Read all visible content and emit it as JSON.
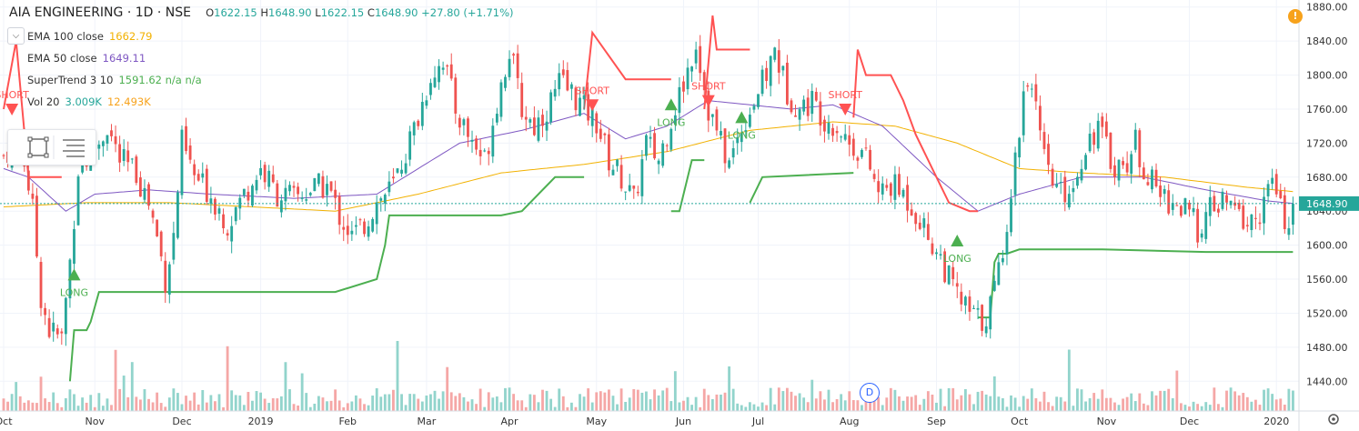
{
  "header": {
    "symbol": "AIA ENGINEERING · 1D · NSE",
    "open_label": "O",
    "open": "1622.15",
    "high_label": "H",
    "high": "1648.90",
    "low_label": "L",
    "low": "1622.15",
    "close_label": "C",
    "close": "1648.90",
    "change": "+27.80 (+1.71%)"
  },
  "indicators": [
    {
      "label": "EMA 100 close",
      "value": "1662.79",
      "color": "#f2b100"
    },
    {
      "label": "EMA 50 close",
      "value": "1649.11",
      "color": "#7e57c2"
    },
    {
      "label": "SuperTrend 3 10",
      "value": "1591.62 n/a n/a",
      "color": "#4caf50"
    },
    {
      "label": "Vol 20",
      "value": "3.009K",
      "value2": "12.493K",
      "color": "#26a69a",
      "color2": "#f7a21b"
    }
  ],
  "colors": {
    "up": "#26a69a",
    "down": "#ef5350",
    "vol_up": "#92d4cc",
    "vol_down": "#f5a7a6",
    "ema100": "#f2b100",
    "ema50": "#7e57c2",
    "st_up": "#4caf50",
    "st_down": "#ff5252",
    "grid": "#f0f3fa",
    "axis_text": "#333333",
    "last_price_bg": "#26a69a"
  },
  "icons": [
    "chevron-down-icon",
    "rectangle-select-icon",
    "menu-lines-icon",
    "alert-icon",
    "dividend-icon"
  ],
  "dividend_badge": "D",
  "alert_badge": "!",
  "chart_data": {
    "type": "candlestick",
    "y_axis_ticks": [
      1440,
      1480,
      1520,
      1560,
      1600,
      1640,
      1680,
      1720,
      1760,
      1800,
      1840,
      1880
    ],
    "ylim": [
      1405,
      1884
    ],
    "last_price": "1648.90",
    "x_axis_labels": [
      "Oct",
      "Nov",
      "Dec",
      "2019",
      "Feb",
      "Mar",
      "Apr",
      "May",
      "Jun",
      "Jul",
      "Aug",
      "Sep",
      "Oct",
      "Nov",
      "Dec",
      "2020"
    ],
    "x_label_index": [
      0,
      22,
      43,
      62,
      83,
      102,
      122,
      143,
      164,
      182,
      204,
      225,
      245,
      266,
      286,
      307
    ],
    "num_bars": 312,
    "price_anchors": [
      [
        0,
        1705
      ],
      [
        4,
        1730
      ],
      [
        7,
        1640
      ],
      [
        9,
        1540
      ],
      [
        11,
        1500
      ],
      [
        14,
        1490
      ],
      [
        16,
        1580
      ],
      [
        18,
        1690
      ],
      [
        20,
        1700
      ],
      [
        23,
        1720
      ],
      [
        25,
        1740
      ],
      [
        28,
        1700
      ],
      [
        32,
        1685
      ],
      [
        35,
        1650
      ],
      [
        37,
        1610
      ],
      [
        39,
        1560
      ],
      [
        41,
        1610
      ],
      [
        43,
        1720
      ],
      [
        46,
        1680
      ],
      [
        50,
        1660
      ],
      [
        54,
        1625
      ],
      [
        58,
        1660
      ],
      [
        62,
        1690
      ],
      [
        66,
        1660
      ],
      [
        70,
        1655
      ],
      [
        74,
        1665
      ],
      [
        78,
        1670
      ],
      [
        81,
        1635
      ],
      [
        84,
        1610
      ],
      [
        87,
        1625
      ],
      [
        90,
        1650
      ],
      [
        94,
        1670
      ],
      [
        97,
        1710
      ],
      [
        100,
        1750
      ],
      [
        103,
        1800
      ],
      [
        106,
        1820
      ],
      [
        109,
        1760
      ],
      [
        112,
        1730
      ],
      [
        116,
        1700
      ],
      [
        119,
        1770
      ],
      [
        122,
        1830
      ],
      [
        125,
        1760
      ],
      [
        128,
        1740
      ],
      [
        131,
        1760
      ],
      [
        134,
        1790
      ],
      [
        137,
        1780
      ],
      [
        140,
        1760
      ],
      [
        143,
        1745
      ],
      [
        146,
        1700
      ],
      [
        149,
        1680
      ],
      [
        152,
        1650
      ],
      [
        155,
        1720
      ],
      [
        158,
        1700
      ],
      [
        161,
        1750
      ],
      [
        164,
        1790
      ],
      [
        167,
        1840
      ],
      [
        170,
        1760
      ],
      [
        173,
        1720
      ],
      [
        175,
        1695
      ],
      [
        178,
        1740
      ],
      [
        181,
        1770
      ],
      [
        184,
        1800
      ],
      [
        186,
        1830
      ],
      [
        189,
        1780
      ],
      [
        192,
        1760
      ],
      [
        195,
        1770
      ],
      [
        198,
        1750
      ],
      [
        201,
        1740
      ],
      [
        204,
        1720
      ],
      [
        207,
        1710
      ],
      [
        209,
        1690
      ],
      [
        211,
        1660
      ],
      [
        214,
        1670
      ],
      [
        217,
        1660
      ],
      [
        220,
        1640
      ],
      [
        223,
        1610
      ],
      [
        226,
        1585
      ],
      [
        228,
        1560
      ],
      [
        230,
        1540
      ],
      [
        233,
        1520
      ],
      [
        236,
        1510
      ],
      [
        238,
        1530
      ],
      [
        240,
        1570
      ],
      [
        242,
        1630
      ],
      [
        244,
        1700
      ],
      [
        246,
        1780
      ],
      [
        248,
        1800
      ],
      [
        250,
        1720
      ],
      [
        252,
        1680
      ],
      [
        255,
        1660
      ],
      [
        258,
        1670
      ],
      [
        261,
        1720
      ],
      [
        264,
        1740
      ],
      [
        267,
        1700
      ],
      [
        270,
        1690
      ],
      [
        273,
        1720
      ],
      [
        276,
        1680
      ],
      [
        279,
        1660
      ],
      [
        282,
        1650
      ],
      [
        285,
        1640
      ],
      [
        288,
        1620
      ],
      [
        291,
        1640
      ],
      [
        294,
        1650
      ],
      [
        297,
        1640
      ],
      [
        300,
        1625
      ],
      [
        302,
        1630
      ],
      [
        304,
        1650
      ],
      [
        306,
        1675
      ],
      [
        308,
        1640
      ],
      [
        310,
        1625
      ],
      [
        311,
        1648.9
      ]
    ],
    "ema100_anchors": [
      [
        0,
        1645
      ],
      [
        20,
        1650
      ],
      [
        40,
        1650
      ],
      [
        60,
        1645
      ],
      [
        80,
        1640
      ],
      [
        100,
        1660
      ],
      [
        120,
        1685
      ],
      [
        140,
        1695
      ],
      [
        160,
        1710
      ],
      [
        180,
        1735
      ],
      [
        200,
        1745
      ],
      [
        215,
        1740
      ],
      [
        230,
        1720
      ],
      [
        245,
        1690
      ],
      [
        260,
        1685
      ],
      [
        280,
        1680
      ],
      [
        300,
        1668
      ],
      [
        311,
        1663
      ]
    ],
    "ema50_anchors": [
      [
        0,
        1690
      ],
      [
        6,
        1680
      ],
      [
        15,
        1640
      ],
      [
        22,
        1660
      ],
      [
        35,
        1665
      ],
      [
        50,
        1660
      ],
      [
        70,
        1655
      ],
      [
        90,
        1660
      ],
      [
        110,
        1720
      ],
      [
        125,
        1735
      ],
      [
        140,
        1755
      ],
      [
        150,
        1725
      ],
      [
        160,
        1740
      ],
      [
        170,
        1770
      ],
      [
        180,
        1765
      ],
      [
        190,
        1760
      ],
      [
        200,
        1765
      ],
      [
        212,
        1740
      ],
      [
        225,
        1680
      ],
      [
        235,
        1640
      ],
      [
        245,
        1660
      ],
      [
        260,
        1680
      ],
      [
        275,
        1680
      ],
      [
        290,
        1665
      ],
      [
        305,
        1652
      ],
      [
        311,
        1649
      ]
    ],
    "supertrend_segments": [
      {
        "trend": "down",
        "points": [
          [
            0,
            1760
          ],
          [
            3,
            1840
          ],
          [
            6,
            1680
          ],
          [
            11,
            1680
          ],
          [
            14,
            1680
          ]
        ]
      },
      {
        "trend": "up",
        "points": [
          [
            16,
            1440
          ],
          [
            17,
            1500
          ],
          [
            20,
            1500
          ],
          [
            21,
            1510
          ],
          [
            23,
            1545
          ],
          [
            60,
            1545
          ],
          [
            80,
            1545
          ],
          [
            90,
            1560
          ],
          [
            92,
            1600
          ],
          [
            93,
            1635
          ],
          [
            120,
            1635
          ],
          [
            125,
            1640
          ],
          [
            133,
            1680
          ],
          [
            140,
            1680
          ]
        ]
      },
      {
        "trend": "down",
        "points": [
          [
            140,
            1760
          ],
          [
            142,
            1850
          ],
          [
            150,
            1795
          ],
          [
            161,
            1795
          ]
        ]
      },
      {
        "trend": "up",
        "points": [
          [
            161,
            1640
          ],
          [
            163,
            1640
          ],
          [
            166,
            1700
          ],
          [
            169,
            1700
          ]
        ]
      },
      {
        "trend": "down",
        "points": [
          [
            169,
            1760
          ],
          [
            171,
            1870
          ],
          [
            172,
            1830
          ],
          [
            180,
            1830
          ]
        ]
      },
      {
        "trend": "up",
        "points": [
          [
            180,
            1650
          ],
          [
            183,
            1680
          ],
          [
            205,
            1685
          ]
        ]
      },
      {
        "trend": "down",
        "points": [
          [
            205,
            1750
          ],
          [
            206,
            1830
          ],
          [
            208,
            1800
          ],
          [
            214,
            1800
          ],
          [
            217,
            1770
          ],
          [
            220,
            1730
          ],
          [
            224,
            1690
          ],
          [
            228,
            1650
          ],
          [
            233,
            1640
          ],
          [
            235,
            1640
          ]
        ]
      },
      {
        "trend": "up",
        "points": [
          [
            235,
            1515
          ],
          [
            238,
            1515
          ],
          [
            239,
            1580
          ],
          [
            240,
            1590
          ],
          [
            242,
            1590
          ],
          [
            245,
            1595
          ],
          [
            265,
            1595
          ],
          [
            290,
            1592
          ],
          [
            311,
            1592
          ]
        ]
      }
    ],
    "signals": [
      {
        "type": "LONG",
        "label": "LONG",
        "index": 17,
        "price": 1565
      },
      {
        "type": "SHORT",
        "label": "SHORT",
        "index": 2,
        "price": 1760
      },
      {
        "type": "SHORT",
        "label": "SHORT",
        "index": 142,
        "price": 1765
      },
      {
        "type": "LONG",
        "label": "LONG",
        "index": 161,
        "price": 1765
      },
      {
        "type": "SHORT",
        "label": "SHORT",
        "index": 170,
        "price": 1770
      },
      {
        "type": "LONG",
        "label": "LONG",
        "index": 178,
        "price": 1750
      },
      {
        "type": "SHORT",
        "label": "SHORT",
        "index": 203,
        "price": 1760
      },
      {
        "type": "LONG",
        "label": "LONG",
        "index": 230,
        "price": 1605
      }
    ],
    "volume_note": "volume histogram at bottom, same colors as candles"
  }
}
